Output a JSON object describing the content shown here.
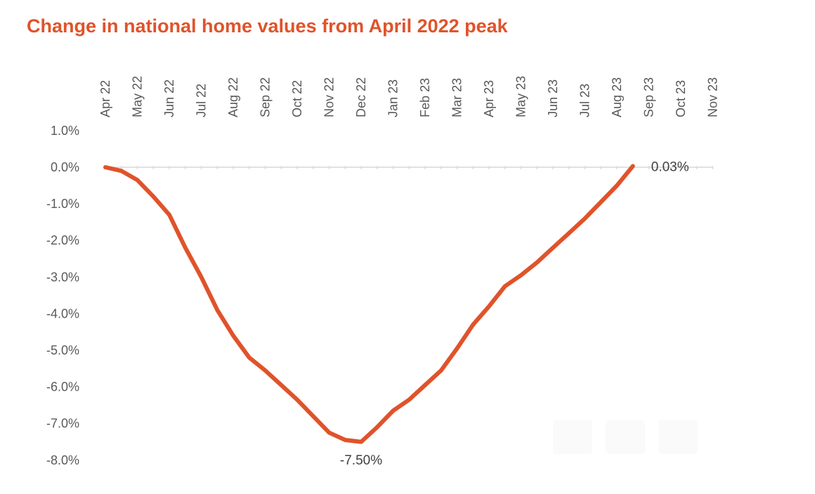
{
  "title": "Change in national home values from April 2022 peak",
  "chart_data": {
    "type": "line",
    "title": "Change in national home values from April 2022 peak",
    "categories": [
      "Apr 22",
      "May 22",
      "Jun 22",
      "Jul 22",
      "Aug 22",
      "Sep 22",
      "Oct 22",
      "Nov 22",
      "Dec 22",
      "Jan 23",
      "Feb 23",
      "Mar 23",
      "Apr 23",
      "May 23",
      "Jun 23",
      "Jul 23",
      "Aug 23",
      "Sep 23",
      "Oct 23",
      "Nov 23"
    ],
    "x_axis_position": "top",
    "y_ticks": [
      "1.0%",
      "0.0%",
      "-1.0%",
      "-2.0%",
      "-3.0%",
      "-4.0%",
      "-5.0%",
      "-6.0%",
      "-7.0%",
      "-8.0%"
    ],
    "ylim": [
      -8,
      1
    ],
    "grid": false,
    "color": "#e0532a",
    "series": [
      {
        "points": [
          {
            "x": 0.0,
            "y": 0.0
          },
          {
            "x": 0.5,
            "y": -0.1
          },
          {
            "x": 1.0,
            "y": -0.35
          },
          {
            "x": 1.5,
            "y": -0.8
          },
          {
            "x": 2.0,
            "y": -1.3
          },
          {
            "x": 2.5,
            "y": -2.2
          },
          {
            "x": 3.0,
            "y": -3.0
          },
          {
            "x": 3.5,
            "y": -3.9
          },
          {
            "x": 4.0,
            "y": -4.6
          },
          {
            "x": 4.5,
            "y": -5.2
          },
          {
            "x": 5.0,
            "y": -5.55
          },
          {
            "x": 5.5,
            "y": -5.95
          },
          {
            "x": 6.0,
            "y": -6.35
          },
          {
            "x": 6.5,
            "y": -6.8
          },
          {
            "x": 7.0,
            "y": -7.25
          },
          {
            "x": 7.5,
            "y": -7.45
          },
          {
            "x": 8.0,
            "y": -7.5
          },
          {
            "x": 8.5,
            "y": -7.1
          },
          {
            "x": 9.0,
            "y": -6.65
          },
          {
            "x": 9.5,
            "y": -6.35
          },
          {
            "x": 10.0,
            "y": -5.95
          },
          {
            "x": 10.5,
            "y": -5.55
          },
          {
            "x": 11.0,
            "y": -4.95
          },
          {
            "x": 11.5,
            "y": -4.3
          },
          {
            "x": 12.0,
            "y": -3.8
          },
          {
            "x": 12.5,
            "y": -3.25
          },
          {
            "x": 13.0,
            "y": -2.95
          },
          {
            "x": 13.5,
            "y": -2.6
          },
          {
            "x": 14.0,
            "y": -2.2
          },
          {
            "x": 14.5,
            "y": -1.8
          },
          {
            "x": 15.0,
            "y": -1.4
          },
          {
            "x": 15.5,
            "y": -0.95
          },
          {
            "x": 16.0,
            "y": -0.5
          },
          {
            "x": 16.5,
            "y": 0.03
          }
        ]
      }
    ],
    "annotations": [
      {
        "text": "-7.50%",
        "x": 8.0,
        "y": -7.5,
        "position": "below"
      },
      {
        "text": "0.03%",
        "x": 16.5,
        "y": 0.03,
        "position": "right"
      }
    ]
  }
}
